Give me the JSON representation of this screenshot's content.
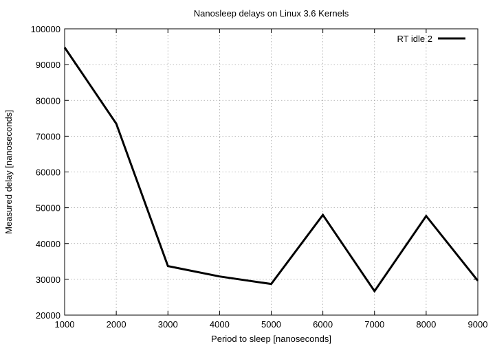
{
  "chart_data": {
    "type": "line",
    "title": "Nanosleep delays on Linux 3.6 Kernels",
    "xlabel": "Period to sleep [nanoseconds]",
    "ylabel": "Measured delay [nanoseconds]",
    "xlim": [
      1000,
      9000
    ],
    "ylim": [
      20000,
      100000
    ],
    "xticks": [
      1000,
      2000,
      3000,
      4000,
      5000,
      6000,
      7000,
      8000,
      9000
    ],
    "yticks": [
      20000,
      30000,
      40000,
      50000,
      60000,
      70000,
      80000,
      90000,
      100000
    ],
    "grid": true,
    "legend_position": "top-right",
    "series": [
      {
        "name": "RT idle 2",
        "color": "#000000",
        "x": [
          1000,
          2000,
          3000,
          4000,
          5000,
          6000,
          7000,
          8000,
          9000
        ],
        "y": [
          94800,
          73500,
          33700,
          30800,
          28700,
          48000,
          26700,
          47700,
          29600
        ]
      }
    ]
  }
}
